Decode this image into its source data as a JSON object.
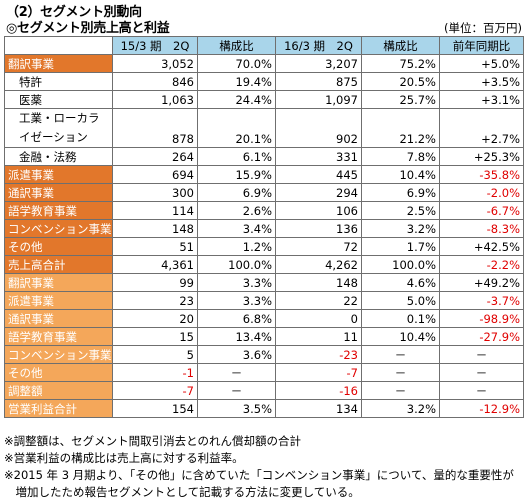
{
  "title1": "（2）セグメント別動向",
  "title2": "◎セグメント別売上高と利益",
  "unit": "(単位：百万円)",
  "columns": [
    "",
    "15/3 期　2Q",
    "構成比",
    "16/3 期　2Q",
    "構成比",
    "前年同期比"
  ],
  "rows": [
    {
      "label": "翻訳事業",
      "style": "dark",
      "v": [
        "3,052",
        "70.0%",
        "3,207",
        "75.2%",
        "+5.0%"
      ]
    },
    {
      "label": "特許",
      "style": "sub",
      "v": [
        "846",
        "19.4%",
        "875",
        "20.5%",
        "+3.5%"
      ]
    },
    {
      "label": "医薬",
      "style": "sub",
      "v": [
        "1,063",
        "24.4%",
        "1,097",
        "25.7%",
        "+3.1%"
      ]
    },
    {
      "label": "工業・ローカライゼーション",
      "style": "sub",
      "v": [
        "878",
        "20.1%",
        "902",
        "21.2%",
        "+2.7%"
      ]
    },
    {
      "label": "金融・法務",
      "style": "sub",
      "v": [
        "264",
        "6.1%",
        "331",
        "7.8%",
        "+25.3%"
      ]
    },
    {
      "label": "派遣事業",
      "style": "dark",
      "v": [
        "694",
        "15.9%",
        "445",
        "10.4%",
        "-35.8%"
      ]
    },
    {
      "label": "通訳事業",
      "style": "dark",
      "v": [
        "300",
        "6.9%",
        "294",
        "6.9%",
        "-2.0%"
      ]
    },
    {
      "label": "語学教育事業",
      "style": "dark",
      "v": [
        "114",
        "2.6%",
        "106",
        "2.5%",
        "-6.7%"
      ]
    },
    {
      "label": "コンベンション事業",
      "style": "dark",
      "v": [
        "148",
        "3.4%",
        "136",
        "3.2%",
        "-8.3%"
      ]
    },
    {
      "label": "その他",
      "style": "dark",
      "v": [
        "51",
        "1.2%",
        "72",
        "1.7%",
        "+42.5%"
      ]
    },
    {
      "label": "売上高合計",
      "style": "dark",
      "v": [
        "4,361",
        "100.0%",
        "4,262",
        "100.0%",
        "-2.2%"
      ]
    },
    {
      "label": "翻訳事業",
      "style": "light",
      "v": [
        "99",
        "3.3%",
        "148",
        "4.6%",
        "+49.2%"
      ]
    },
    {
      "label": "派遣事業",
      "style": "light",
      "v": [
        "23",
        "3.3%",
        "22",
        "5.0%",
        "-3.7%"
      ]
    },
    {
      "label": "通訳事業",
      "style": "light",
      "v": [
        "20",
        "6.8%",
        "0",
        "0.1%",
        "-98.9%"
      ]
    },
    {
      "label": "語学教育事業",
      "style": "light",
      "v": [
        "15",
        "13.4%",
        "11",
        "10.4%",
        "-27.9%"
      ]
    },
    {
      "label": "コンベンション事業",
      "style": "light",
      "v": [
        "5",
        "3.6%",
        "-23",
        "－",
        "－"
      ]
    },
    {
      "label": "その他",
      "style": "light",
      "v": [
        "-1",
        "－",
        "-7",
        "－",
        "－"
      ]
    },
    {
      "label": "調整額",
      "style": "light",
      "v": [
        "-7",
        "－",
        "-16",
        "－",
        "－"
      ]
    },
    {
      "label": "営業利益合計",
      "style": "light",
      "v": [
        "154",
        "3.5%",
        "134",
        "3.2%",
        "-12.9%"
      ]
    }
  ],
  "notes": [
    "※調整額は、セグメント間取引消去とのれん償却額の合計",
    "※営業利益の構成比は売上高に対する利益率。",
    "※2015 年 3 月期より、「その他」に含めていた「コンベンション事業」について、量的な重要性が",
    "　増加したため報告セグメントとして記載する方法に変更している。"
  ]
}
